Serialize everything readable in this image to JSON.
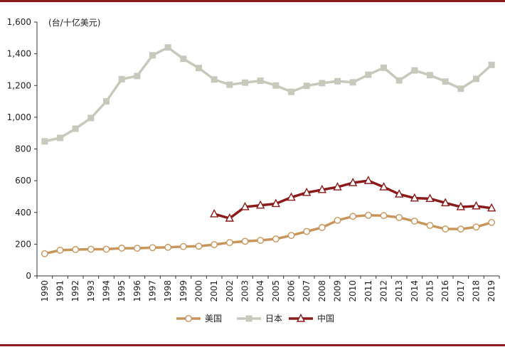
{
  "chart_data": {
    "type": "line",
    "unit_label": "(台/十亿美元)",
    "x": [
      "1990",
      "1991",
      "1992",
      "1993",
      "1994",
      "1995",
      "1996",
      "1997",
      "1998",
      "1999",
      "2000",
      "2001",
      "2002",
      "2003",
      "2004",
      "2005",
      "2006",
      "2007",
      "2008",
      "2009",
      "2010",
      "2011",
      "2012",
      "2013",
      "2014",
      "2015",
      "2016",
      "2017",
      "2018",
      "2019"
    ],
    "ylim": [
      0,
      1600
    ],
    "yticks": [
      0,
      200,
      400,
      600,
      800,
      1000,
      1200,
      1400,
      1600
    ],
    "ytick_labels": [
      "0",
      "200",
      "400",
      "600",
      "800",
      "1,000",
      "1,200",
      "1,400",
      "1,600"
    ],
    "grid": false,
    "legend_position": "bottom",
    "series": [
      {
        "name": "美国",
        "color": "#c8955a",
        "marker": "circle",
        "values": [
          140,
          162,
          166,
          168,
          168,
          175,
          174,
          178,
          180,
          185,
          187,
          197,
          210,
          218,
          224,
          233,
          255,
          280,
          305,
          350,
          375,
          382,
          380,
          368,
          345,
          318,
          296,
          295,
          308,
          337
        ]
      },
      {
        "name": "日本",
        "color": "#c8c8bd",
        "marker": "square",
        "values": [
          848,
          870,
          928,
          995,
          1100,
          1240,
          1260,
          1390,
          1440,
          1368,
          1310,
          1238,
          1205,
          1218,
          1230,
          1200,
          1160,
          1198,
          1215,
          1227,
          1220,
          1268,
          1312,
          1232,
          1295,
          1265,
          1225,
          1180,
          1242,
          1330
        ]
      },
      {
        "name": "中国",
        "color": "#8b1a1a",
        "marker": "triangle",
        "values": [
          null,
          null,
          null,
          null,
          null,
          null,
          null,
          null,
          null,
          null,
          null,
          390,
          363,
          435,
          445,
          455,
          495,
          525,
          543,
          560,
          587,
          600,
          560,
          515,
          490,
          487,
          460,
          435,
          440,
          427
        ]
      }
    ]
  }
}
